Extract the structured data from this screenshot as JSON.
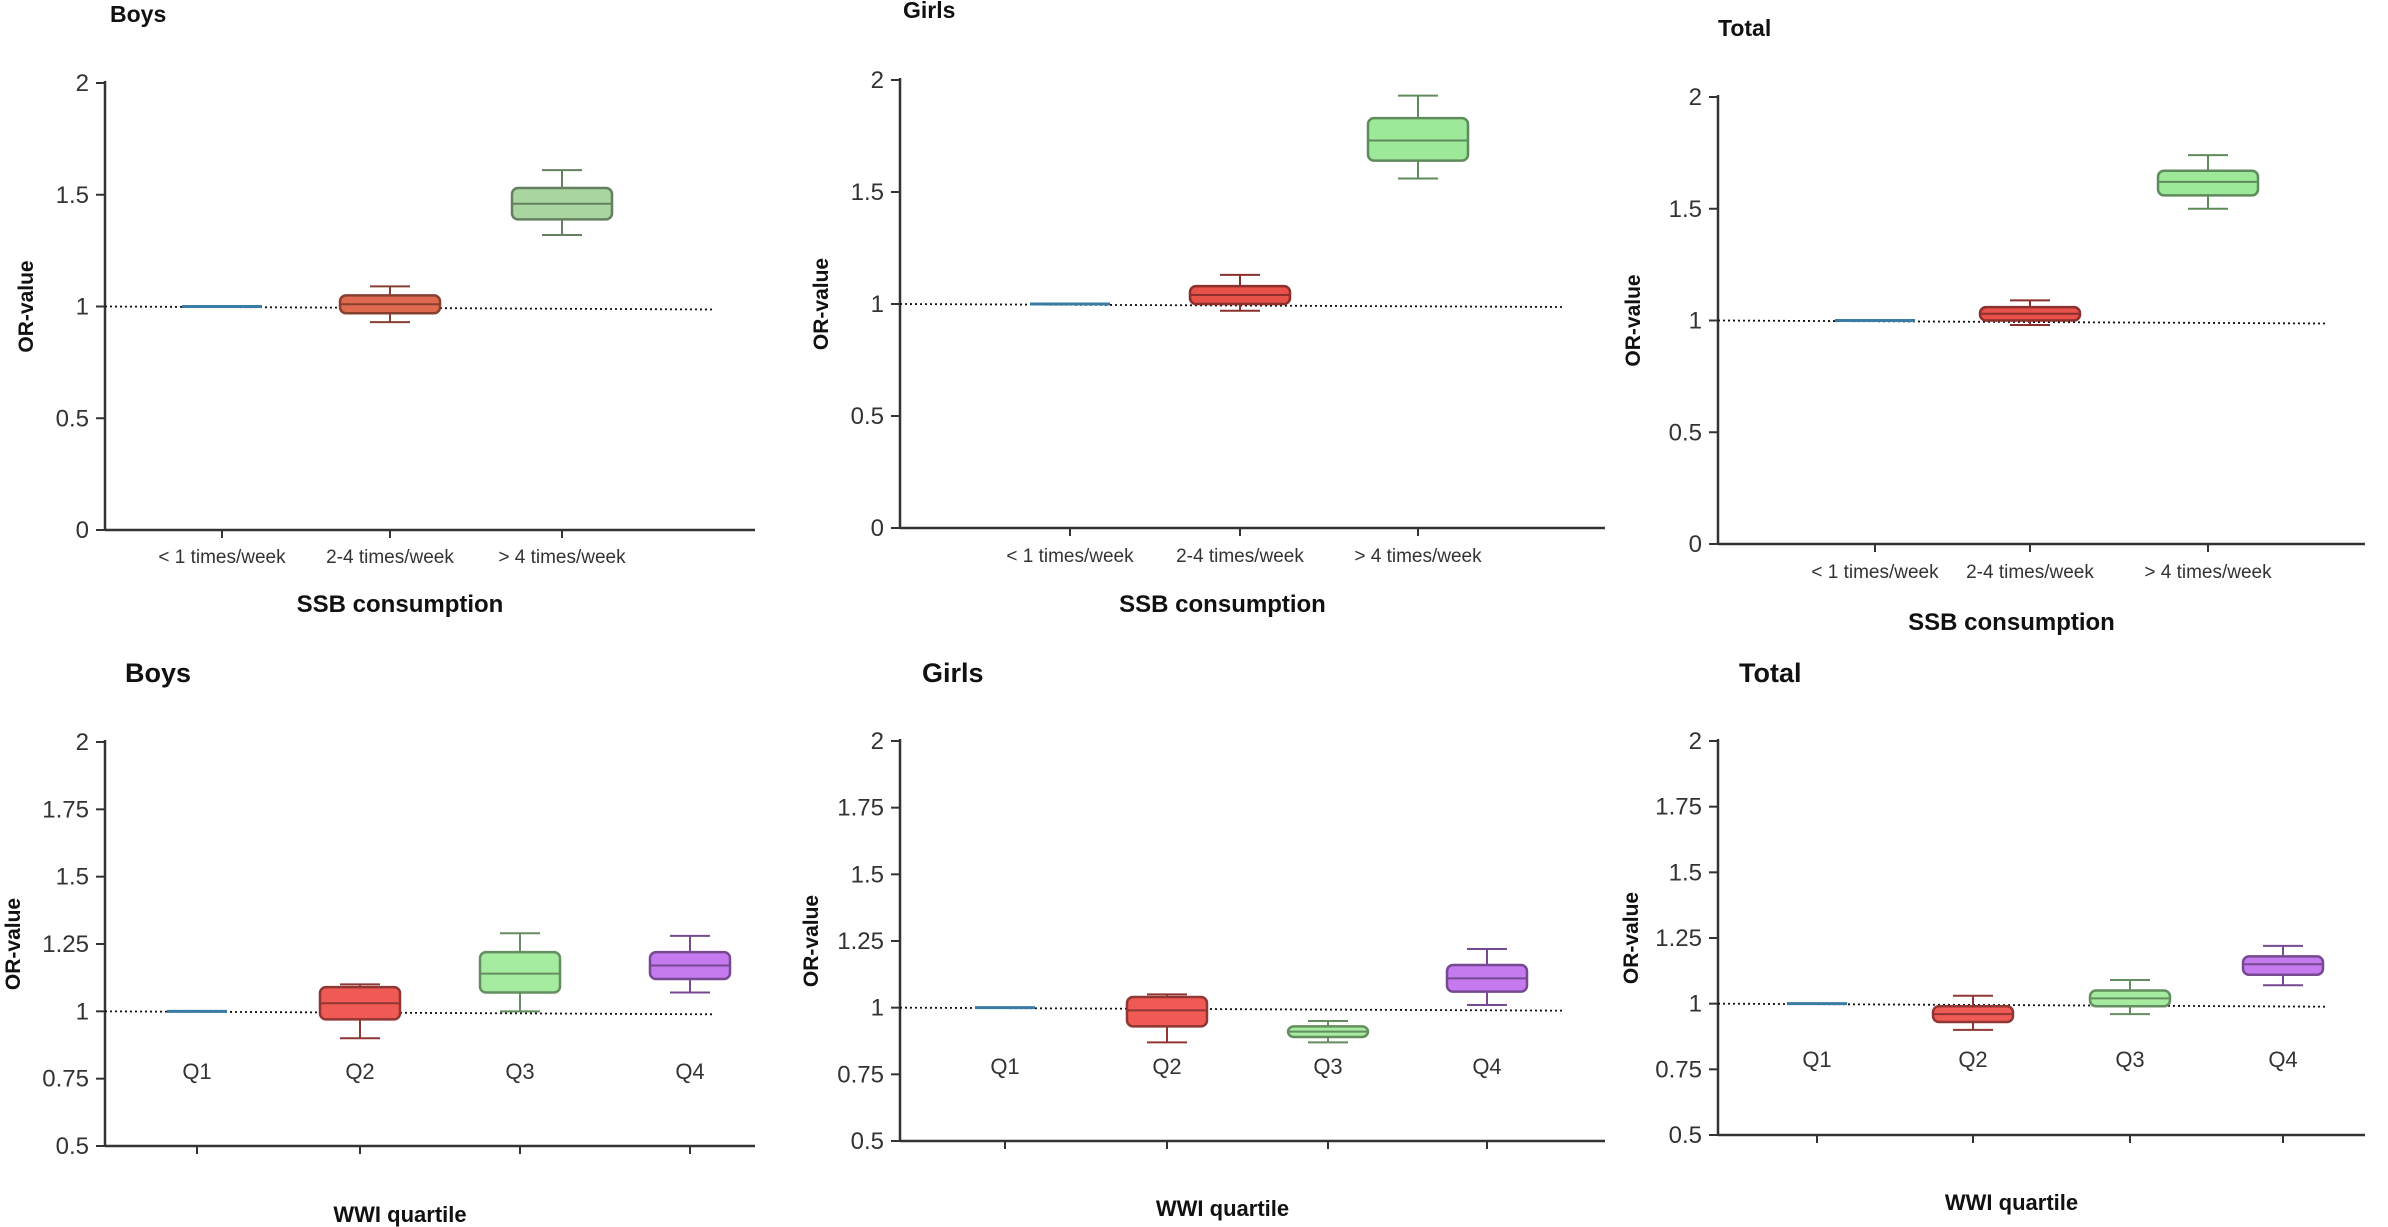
{
  "chart_data": [
    {
      "type": "boxplot",
      "title": "Boys",
      "xlabel": "SSB consumption",
      "ylabel": "OR-value",
      "ylim": [
        0,
        2
      ],
      "yticks": [
        "0",
        "0.5",
        "1",
        "1.5",
        "2"
      ],
      "reference_line": 1,
      "categories": [
        "< 1 times/week",
        "2-4 times/week",
        "> 4 times/week"
      ],
      "boxes": [
        {
          "category": "< 1 times/week",
          "min": 1.0,
          "q1": 1.0,
          "median": 1.0,
          "q3": 1.0,
          "max": 1.0,
          "color": "#3a7ca5"
        },
        {
          "category": "2-4 times/week",
          "min": 0.93,
          "q1": 0.97,
          "median": 1.01,
          "q3": 1.05,
          "max": 1.09,
          "color": "#e06a50"
        },
        {
          "category": "> 4 times/week",
          "min": 1.32,
          "q1": 1.39,
          "median": 1.46,
          "q3": 1.53,
          "max": 1.61,
          "color": "#a9d5a0"
        }
      ]
    },
    {
      "type": "boxplot",
      "title": "Girls",
      "xlabel": "SSB consumption",
      "ylabel": "OR-value",
      "ylim": [
        0,
        2
      ],
      "yticks": [
        "0",
        "0.5",
        "1",
        "1.5",
        "2"
      ],
      "reference_line": 1,
      "categories": [
        "< 1 times/week",
        "2-4 times/week",
        "> 4 times/week"
      ],
      "boxes": [
        {
          "category": "< 1 times/week",
          "min": 1.0,
          "q1": 1.0,
          "median": 1.0,
          "q3": 1.0,
          "max": 1.0,
          "color": "#3a7ca5"
        },
        {
          "category": "2-4 times/week",
          "min": 0.97,
          "q1": 1.0,
          "median": 1.04,
          "q3": 1.08,
          "max": 1.13,
          "color": "#e8504a"
        },
        {
          "category": "> 4 times/week",
          "min": 1.56,
          "q1": 1.64,
          "median": 1.73,
          "q3": 1.83,
          "max": 1.93,
          "color": "#9ee89a"
        }
      ]
    },
    {
      "type": "boxplot",
      "title": "Total",
      "xlabel": "SSB consumption",
      "ylabel": "OR-value",
      "ylim": [
        0,
        2
      ],
      "yticks": [
        "0",
        "0.5",
        "1",
        "1.5",
        "2"
      ],
      "reference_line": 1,
      "categories": [
        "< 1 times/week",
        "2-4 times/week",
        "> 4 times/week"
      ],
      "boxes": [
        {
          "category": "< 1 times/week",
          "min": 1.0,
          "q1": 1.0,
          "median": 1.0,
          "q3": 1.0,
          "max": 1.0,
          "color": "#3a7ca5"
        },
        {
          "category": "2-4 times/week",
          "min": 0.98,
          "q1": 1.0,
          "median": 1.03,
          "q3": 1.06,
          "max": 1.09,
          "color": "#e8504a"
        },
        {
          "category": "> 4 times/week",
          "min": 1.5,
          "q1": 1.56,
          "median": 1.62,
          "q3": 1.67,
          "max": 1.74,
          "color": "#9ee89a"
        }
      ]
    },
    {
      "type": "boxplot",
      "title": "Boys",
      "xlabel": "WWI quartile",
      "ylabel": "OR-value",
      "ylim": [
        0.5,
        2
      ],
      "yticks": [
        "0.5",
        "0.75",
        "1",
        "1.25",
        "1.5",
        "1.75",
        "2"
      ],
      "reference_line": 1,
      "categories": [
        "Q1",
        "Q2",
        "Q3",
        "Q4"
      ],
      "boxes": [
        {
          "category": "Q1",
          "min": 1.0,
          "q1": 1.0,
          "median": 1.0,
          "q3": 1.0,
          "max": 1.0,
          "color": "#3a7ca5"
        },
        {
          "category": "Q2",
          "min": 0.9,
          "q1": 0.97,
          "median": 1.03,
          "q3": 1.09,
          "max": 1.1,
          "color": "#f05a55"
        },
        {
          "category": "Q3",
          "min": 1.0,
          "q1": 1.07,
          "median": 1.14,
          "q3": 1.22,
          "max": 1.29,
          "color": "#a6eca0"
        },
        {
          "category": "Q4",
          "min": 1.07,
          "q1": 1.12,
          "median": 1.17,
          "q3": 1.22,
          "max": 1.28,
          "color": "#c57af0"
        }
      ]
    },
    {
      "type": "boxplot",
      "title": "Girls",
      "xlabel": "WWI quartile",
      "ylabel": "OR-value",
      "ylim": [
        0.5,
        2
      ],
      "yticks": [
        "0.5",
        "0.75",
        "1",
        "1.25",
        "1.5",
        "1.75",
        "2"
      ],
      "reference_line": 1,
      "categories": [
        "Q1",
        "Q2",
        "Q3",
        "Q4"
      ],
      "boxes": [
        {
          "category": "Q1",
          "min": 1.0,
          "q1": 1.0,
          "median": 1.0,
          "q3": 1.0,
          "max": 1.0,
          "color": "#3a7ca5"
        },
        {
          "category": "Q2",
          "min": 0.87,
          "q1": 0.93,
          "median": 0.99,
          "q3": 1.04,
          "max": 1.05,
          "color": "#f05a55"
        },
        {
          "category": "Q3",
          "min": 0.87,
          "q1": 0.89,
          "median": 0.91,
          "q3": 0.93,
          "max": 0.95,
          "color": "#a6eca0"
        },
        {
          "category": "Q4",
          "min": 1.01,
          "q1": 1.06,
          "median": 1.11,
          "q3": 1.16,
          "max": 1.22,
          "color": "#c57af0"
        }
      ]
    },
    {
      "type": "boxplot",
      "title": "Total",
      "xlabel": "WWI quartile",
      "ylabel": "OR-value",
      "ylim": [
        0.5,
        2
      ],
      "yticks": [
        "0.5",
        "0.75",
        "1",
        "1.25",
        "1.5",
        "1.75",
        "2"
      ],
      "reference_line": 1,
      "categories": [
        "Q1",
        "Q2",
        "Q3",
        "Q4"
      ],
      "boxes": [
        {
          "category": "Q1",
          "min": 1.0,
          "q1": 1.0,
          "median": 1.0,
          "q3": 1.0,
          "max": 1.0,
          "color": "#3a7ca5"
        },
        {
          "category": "Q2",
          "min": 0.9,
          "q1": 0.93,
          "median": 0.96,
          "q3": 0.99,
          "max": 1.03,
          "color": "#f05a55"
        },
        {
          "category": "Q3",
          "min": 0.96,
          "q1": 0.99,
          "median": 1.02,
          "q3": 1.05,
          "max": 1.09,
          "color": "#a6eca0"
        },
        {
          "category": "Q4",
          "min": 1.07,
          "q1": 1.11,
          "median": 1.15,
          "q3": 1.18,
          "max": 1.22,
          "color": "#c57af0"
        }
      ]
    }
  ]
}
